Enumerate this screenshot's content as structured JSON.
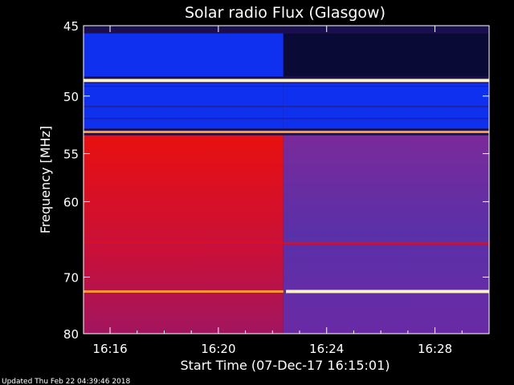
{
  "chart_data": {
    "type": "heatmap",
    "title": "Solar radio Flux (Glasgow)",
    "xlabel": "Start Time (07-Dec-17 16:15:01)",
    "ylabel": "Frequency [MHz]",
    "x_ticks": [
      "16:16",
      "16:20",
      "16:24",
      "16:28"
    ],
    "x_tick_minutes": [
      16,
      20,
      24,
      28
    ],
    "x_range_minutes": [
      15.02,
      30.0
    ],
    "y_ticks": [
      45,
      50,
      55,
      60,
      70,
      80
    ],
    "y_range": [
      45,
      80
    ],
    "y_scale": "reciprocal",
    "colors": {
      "low": "#0a0a3a",
      "mid": "#5a2aa8",
      "high": "#e01010",
      "saturated": "#fff2c0"
    },
    "regions": [
      {
        "t": [
          15.02,
          22.4
        ],
        "f": [
          45.5,
          48.5
        ],
        "level": "blue"
      },
      {
        "t": [
          22.4,
          30.0
        ],
        "f": [
          45.5,
          48.5
        ],
        "level": "dark"
      },
      {
        "t": [
          15.02,
          22.4
        ],
        "f": [
          49.0,
          52.7
        ],
        "level": "blue"
      },
      {
        "t": [
          22.4,
          30.0
        ],
        "f": [
          49.0,
          52.7
        ],
        "level": "blue"
      },
      {
        "t": [
          15.02,
          22.4
        ],
        "f": [
          53.3,
          80.0
        ],
        "level": "red"
      },
      {
        "t": [
          22.4,
          30.0
        ],
        "f": [
          53.3,
          80.0
        ],
        "level": "violet"
      }
    ],
    "bright_lines": [
      {
        "f": 48.8,
        "t": [
          15.02,
          30.0
        ],
        "level": "saturated"
      },
      {
        "f": 53.0,
        "t": [
          15.02,
          30.0
        ],
        "level": "orange"
      },
      {
        "f": 65.2,
        "t": [
          15.02,
          30.0
        ],
        "level": "red"
      },
      {
        "f": 72.3,
        "t": [
          22.5,
          30.0
        ],
        "level": "saturated"
      },
      {
        "f": 72.3,
        "t": [
          15.02,
          22.4
        ],
        "level": "orange"
      }
    ],
    "grid": false,
    "legend": "none"
  },
  "footer": {
    "updated": "Updated Thu Feb 22 04:39:46 2018"
  }
}
